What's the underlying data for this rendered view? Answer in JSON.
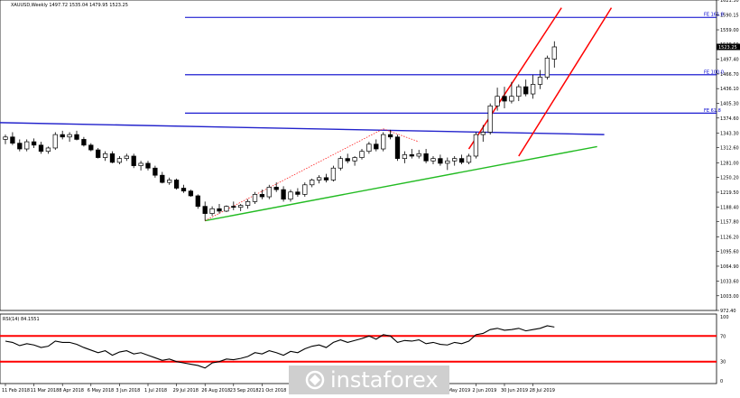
{
  "header": {
    "symbol_line": "XAUUSD,Weekly  1497.72 1535.04 1479.95 1523.25"
  },
  "rsi_header": "RSI(14) 84.1551",
  "watermark": "instaforex",
  "colors": {
    "up_candle": "#ffffff",
    "down_candle": "#000000",
    "fib_lines": "#0000cc",
    "channel_lines": "#ff0000",
    "support_trendline": "#22bb22",
    "resistance_trendline": "#2222cc",
    "projection_dotted": "#ff0000",
    "rsi_line": "#000000",
    "rsi_levels": "#ff0000",
    "watermark_bg": "#d0d0d0"
  },
  "chart_data": [
    {
      "type": "candlestick",
      "title": "XAUUSD,Weekly",
      "ohlc_last": {
        "open": 1497.72,
        "high": 1535.04,
        "low": 1479.95,
        "close": 1523.25
      },
      "ylim": [
        972.4,
        1621.3
      ],
      "yticks": [
        "1621.30",
        "1590.15",
        "1559.00",
        "1528.50",
        "1497.40",
        "1466.70",
        "1436.10",
        "1405.30",
        "1374.60",
        "1343.30",
        "1312.60",
        "1281.00",
        "1250.20",
        "1219.50",
        "1188.40",
        "1157.80",
        "1126.20",
        "1095.60",
        "1064.90",
        "1033.60",
        "1003.00",
        "972.40"
      ],
      "xticks": [
        "11 Feb 2018",
        "11 Mar 2018",
        "8 Apr 2018",
        "6 May 2018",
        "3 Jun 2018",
        "1 Jul 2018",
        "29 Jul 2018",
        "26 Aug 2018",
        "23 Sep 2018",
        "21 Oct 2018",
        "5 May 2019",
        "2 Jun 2019",
        "30 Jun 2019",
        "28 Jul 2019"
      ],
      "candles": [
        [
          1330,
          1340,
          1320,
          1335
        ],
        [
          1335,
          1345,
          1318,
          1322
        ],
        [
          1322,
          1330,
          1305,
          1310
        ],
        [
          1310,
          1330,
          1305,
          1325
        ],
        [
          1325,
          1332,
          1312,
          1318
        ],
        [
          1318,
          1325,
          1300,
          1305
        ],
        [
          1305,
          1315,
          1300,
          1312
        ],
        [
          1312,
          1345,
          1308,
          1340
        ],
        [
          1340,
          1348,
          1330,
          1335
        ],
        [
          1335,
          1345,
          1325,
          1340
        ],
        [
          1340,
          1348,
          1328,
          1330
        ],
        [
          1330,
          1335,
          1315,
          1318
        ],
        [
          1318,
          1322,
          1305,
          1308
        ],
        [
          1308,
          1312,
          1290,
          1292
        ],
        [
          1292,
          1305,
          1285,
          1300
        ],
        [
          1300,
          1305,
          1280,
          1282
        ],
        [
          1282,
          1295,
          1278,
          1290
        ],
        [
          1290,
          1300,
          1285,
          1295
        ],
        [
          1295,
          1300,
          1270,
          1275
        ],
        [
          1275,
          1285,
          1265,
          1280
        ],
        [
          1280,
          1285,
          1265,
          1270
        ],
        [
          1270,
          1275,
          1250,
          1255
        ],
        [
          1255,
          1262,
          1238,
          1240
        ],
        [
          1240,
          1250,
          1235,
          1245
        ],
        [
          1245,
          1248,
          1225,
          1228
        ],
        [
          1228,
          1235,
          1218,
          1222
        ],
        [
          1222,
          1225,
          1210,
          1212
        ],
        [
          1212,
          1215,
          1185,
          1190
        ],
        [
          1190,
          1200,
          1160,
          1175
        ],
        [
          1175,
          1190,
          1170,
          1185
        ],
        [
          1185,
          1195,
          1175,
          1180
        ],
        [
          1180,
          1192,
          1178,
          1190
        ],
        [
          1190,
          1200,
          1182,
          1188
        ],
        [
          1188,
          1195,
          1180,
          1192
        ],
        [
          1192,
          1205,
          1185,
          1200
        ],
        [
          1200,
          1220,
          1195,
          1215
        ],
        [
          1215,
          1225,
          1205,
          1210
        ],
        [
          1210,
          1235,
          1205,
          1230
        ],
        [
          1230,
          1240,
          1220,
          1225
        ],
        [
          1225,
          1232,
          1200,
          1205
        ],
        [
          1205,
          1225,
          1200,
          1220
        ],
        [
          1220,
          1228,
          1210,
          1215
        ],
        [
          1215,
          1240,
          1210,
          1235
        ],
        [
          1235,
          1248,
          1230,
          1245
        ],
        [
          1245,
          1255,
          1238,
          1250
        ],
        [
          1250,
          1258,
          1240,
          1245
        ],
        [
          1245,
          1275,
          1242,
          1270
        ],
        [
          1270,
          1295,
          1265,
          1290
        ],
        [
          1290,
          1300,
          1280,
          1285
        ],
        [
          1285,
          1295,
          1275,
          1292
        ],
        [
          1292,
          1310,
          1288,
          1305
        ],
        [
          1305,
          1325,
          1300,
          1320
        ],
        [
          1320,
          1330,
          1305,
          1310
        ],
        [
          1310,
          1345,
          1305,
          1340
        ],
        [
          1340,
          1350,
          1330,
          1335
        ],
        [
          1335,
          1340,
          1285,
          1290
        ],
        [
          1290,
          1305,
          1280,
          1298
        ],
        [
          1298,
          1310,
          1290,
          1295
        ],
        [
          1295,
          1308,
          1290,
          1300
        ],
        [
          1300,
          1310,
          1280,
          1285
        ],
        [
          1285,
          1295,
          1278,
          1290
        ],
        [
          1290,
          1298,
          1275,
          1280
        ],
        [
          1280,
          1292,
          1266,
          1285
        ],
        [
          1285,
          1295,
          1275,
          1290
        ],
        [
          1290,
          1298,
          1278,
          1282
        ],
        [
          1282,
          1300,
          1278,
          1295
        ],
        [
          1295,
          1345,
          1290,
          1340
        ],
        [
          1340,
          1360,
          1325,
          1345
        ],
        [
          1345,
          1405,
          1340,
          1400
        ],
        [
          1400,
          1438,
          1390,
          1420
        ],
        [
          1420,
          1440,
          1395,
          1410
        ],
        [
          1410,
          1450,
          1405,
          1420
        ],
        [
          1420,
          1445,
          1410,
          1440
        ],
        [
          1440,
          1455,
          1420,
          1425
        ],
        [
          1425,
          1465,
          1415,
          1445
        ],
        [
          1445,
          1475,
          1435,
          1460
        ],
        [
          1460,
          1505,
          1455,
          1500
        ],
        [
          1497.72,
          1535.04,
          1479.95,
          1523.25
        ]
      ],
      "fib_levels": [
        {
          "label": "FE 161.8",
          "value": 1585
        },
        {
          "label": "FE 100.0",
          "value": 1465
        },
        {
          "label": "FE 61.8",
          "value": 1385
        }
      ],
      "last_price_label": "1523.25"
    },
    {
      "type": "line",
      "title": "RSI(14) 84.1551",
      "ylim": [
        0,
        100
      ],
      "yticks": [
        "100",
        "70",
        "30",
        "0"
      ],
      "levels": [
        70,
        30
      ],
      "values": [
        62,
        60,
        55,
        58,
        56,
        52,
        54,
        62,
        60,
        60,
        57,
        52,
        48,
        44,
        47,
        40,
        45,
        47,
        42,
        44,
        40,
        36,
        32,
        34,
        30,
        28,
        26,
        24,
        20,
        28,
        30,
        34,
        33,
        35,
        38,
        44,
        42,
        47,
        44,
        40,
        46,
        44,
        50,
        54,
        56,
        52,
        60,
        64,
        60,
        63,
        66,
        70,
        65,
        72,
        70,
        60,
        63,
        62,
        64,
        58,
        60,
        57,
        56,
        60,
        58,
        62,
        72,
        74,
        80,
        82,
        79,
        80,
        82,
        78,
        80,
        82,
        86,
        84
      ]
    }
  ]
}
